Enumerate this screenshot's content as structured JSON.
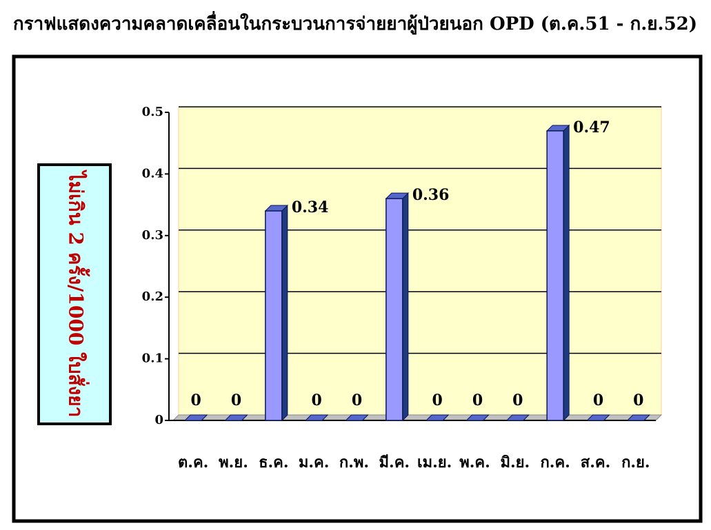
{
  "chart_data": {
    "type": "bar",
    "title": "กราฟแสดงความคลาดเคลื่อนในกระบวนการจ่ายยาผู้ป่วยนอก OPD (ต.ค.51 - ก.ย.52)",
    "y_label": "ไม่เกิน 2 ครั้ง/1000 ใบสั่งยา",
    "categories": [
      "ต.ค.",
      "พ.ย.",
      "ธ.ค.",
      "ม.ค.",
      "ก.พ.",
      "มี.ค.",
      "เม.ย.",
      "พ.ค.",
      "มิ.ย.",
      "ก.ค.",
      "ส.ค.",
      "ก.ย."
    ],
    "values": [
      0,
      0,
      0.34,
      0,
      0,
      0.36,
      0,
      0,
      0,
      0.47,
      0,
      0
    ],
    "color": "#9999ff",
    "ylim": [
      0,
      0.5
    ],
    "yticks": [
      0,
      0.1,
      0.2,
      0.3,
      0.4,
      0.5
    ],
    "grid": true
  }
}
